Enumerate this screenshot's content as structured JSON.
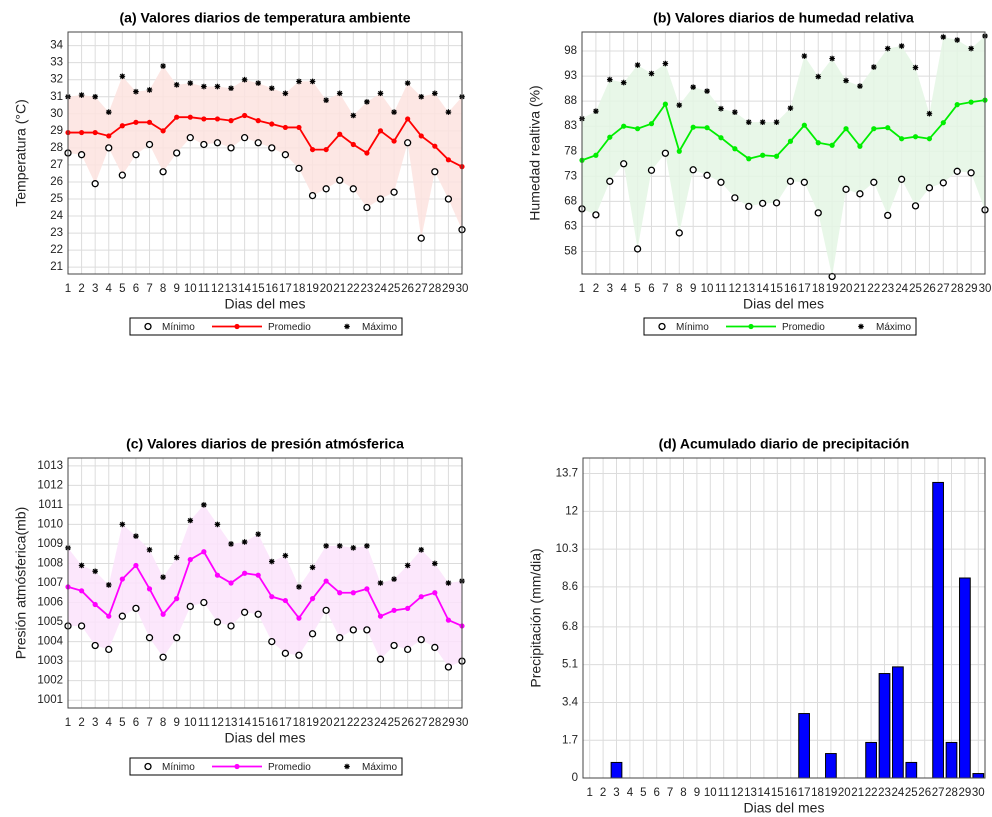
{
  "chart_data": [
    {
      "type": "line",
      "title": "(a) Valores diarios de temperatura ambiente",
      "xlabel": "Dias del mes",
      "ylabel": "Temperatura (°C)",
      "x": [
        1,
        2,
        3,
        4,
        5,
        6,
        7,
        8,
        9,
        10,
        11,
        12,
        13,
        14,
        15,
        16,
        17,
        18,
        19,
        20,
        21,
        22,
        23,
        24,
        25,
        26,
        27,
        28,
        29,
        30
      ],
      "xlim": [
        1,
        30
      ],
      "xticks": [
        1,
        2,
        3,
        4,
        5,
        6,
        7,
        8,
        9,
        10,
        11,
        12,
        13,
        14,
        15,
        16,
        17,
        18,
        19,
        20,
        21,
        22,
        23,
        24,
        25,
        26,
        27,
        28,
        29,
        30
      ],
      "ylim": [
        20.6,
        34.8
      ],
      "yticks": [
        21,
        22,
        23,
        24,
        25,
        26,
        27,
        28,
        29,
        30,
        31,
        32,
        33,
        34
      ],
      "grid": true,
      "legend": "bottom",
      "band_color": "#fde3df",
      "series": [
        {
          "name": "Mínimo",
          "color": "#000000",
          "marker": "circle",
          "values": [
            27.7,
            27.6,
            25.9,
            28.0,
            26.4,
            27.6,
            28.2,
            26.6,
            27.7,
            28.6,
            28.2,
            28.3,
            28.0,
            28.6,
            28.3,
            28.0,
            27.6,
            26.8,
            25.2,
            25.6,
            26.1,
            25.6,
            24.5,
            25.0,
            25.4,
            28.3,
            22.7,
            26.6,
            25.0,
            23.2
          ]
        },
        {
          "name": "Promedio",
          "color": "#ff0000",
          "marker": "dot",
          "values": [
            28.9,
            28.9,
            28.9,
            28.7,
            29.3,
            29.5,
            29.5,
            29.0,
            29.8,
            29.8,
            29.7,
            29.7,
            29.6,
            29.9,
            29.6,
            29.4,
            29.2,
            29.2,
            27.9,
            27.9,
            28.8,
            28.2,
            27.7,
            29.0,
            28.4,
            29.7,
            28.7,
            28.1,
            27.3,
            26.9
          ]
        },
        {
          "name": "Máximo",
          "color": "#000000",
          "marker": "asterisk",
          "values": [
            31.0,
            31.1,
            31.0,
            30.1,
            32.2,
            31.3,
            31.4,
            32.8,
            31.7,
            31.8,
            31.6,
            31.6,
            31.5,
            32.0,
            31.8,
            31.5,
            31.2,
            31.9,
            31.9,
            30.8,
            31.2,
            29.9,
            30.7,
            31.2,
            30.1,
            31.8,
            31.0,
            31.2,
            30.1,
            31.0
          ]
        }
      ]
    },
    {
      "type": "line",
      "title": "(b) Valores diarios de humedad relativa",
      "xlabel": "Dias del mes",
      "ylabel": "Humedad realtiva (%)",
      "x": [
        1,
        2,
        3,
        4,
        5,
        6,
        7,
        8,
        9,
        10,
        11,
        12,
        13,
        14,
        15,
        16,
        17,
        18,
        19,
        20,
        21,
        22,
        23,
        24,
        25,
        26,
        27,
        28,
        29,
        30
      ],
      "xlim": [
        1,
        30
      ],
      "xticks": [
        1,
        2,
        3,
        4,
        5,
        6,
        7,
        8,
        9,
        10,
        11,
        12,
        13,
        14,
        15,
        16,
        17,
        18,
        19,
        20,
        21,
        22,
        23,
        24,
        25,
        26,
        27,
        28,
        29,
        30
      ],
      "ylim": [
        53.5,
        101.8
      ],
      "yticks": [
        58,
        63,
        68,
        73,
        78,
        83,
        88,
        93,
        98
      ],
      "grid": true,
      "legend": "bottom",
      "band_color": "#e4f6e4",
      "series": [
        {
          "name": "Mínimo",
          "color": "#000000",
          "marker": "circle",
          "values": [
            66.5,
            65.3,
            72.0,
            75.5,
            58.5,
            74.2,
            77.6,
            61.7,
            74.3,
            73.2,
            71.8,
            68.7,
            67.0,
            67.6,
            67.7,
            72.0,
            71.8,
            65.7,
            53.0,
            70.4,
            69.5,
            71.8,
            65.2,
            72.4,
            67.1,
            70.7,
            71.7,
            74.0,
            73.7,
            66.3
          ]
        },
        {
          "name": "Promedio",
          "color": "#00ee00",
          "marker": "dot",
          "values": [
            76.2,
            77.2,
            80.8,
            83.0,
            82.5,
            83.5,
            87.4,
            78.0,
            82.8,
            82.7,
            80.7,
            78.5,
            76.5,
            77.2,
            77.0,
            80.0,
            83.2,
            79.7,
            79.2,
            82.5,
            79.0,
            82.5,
            82.7,
            80.5,
            80.9,
            80.5,
            83.7,
            87.3,
            87.8,
            88.2
          ]
        },
        {
          "name": "Máximo",
          "color": "#000000",
          "marker": "asterisk",
          "values": [
            84.5,
            86.0,
            92.3,
            91.7,
            95.2,
            93.5,
            95.5,
            87.2,
            90.8,
            90.0,
            86.5,
            85.8,
            83.8,
            83.8,
            83.8,
            86.6,
            97.0,
            92.9,
            96.5,
            92.1,
            91.0,
            94.8,
            98.5,
            99.0,
            94.7,
            85.5,
            100.8,
            100.2,
            98.5,
            101.0
          ]
        }
      ]
    },
    {
      "type": "line",
      "title": "(c) Valores diarios de presión atmósferica",
      "xlabel": "Dias del mes",
      "ylabel": "Presión atmósferica(mb)",
      "x": [
        1,
        2,
        3,
        4,
        5,
        6,
        7,
        8,
        9,
        10,
        11,
        12,
        13,
        14,
        15,
        16,
        17,
        18,
        19,
        20,
        21,
        22,
        23,
        24,
        25,
        26,
        27,
        28,
        29,
        30
      ],
      "xlim": [
        1,
        30
      ],
      "xticks": [
        1,
        2,
        3,
        4,
        5,
        6,
        7,
        8,
        9,
        10,
        11,
        12,
        13,
        14,
        15,
        16,
        17,
        18,
        19,
        20,
        21,
        22,
        23,
        24,
        25,
        26,
        27,
        28,
        29,
        30
      ],
      "ylim": [
        1000.6,
        1013.4
      ],
      "yticks": [
        1001,
        1002,
        1003,
        1004,
        1005,
        1006,
        1007,
        1008,
        1009,
        1010,
        1011,
        1012,
        1013
      ],
      "grid": true,
      "legend": "bottom",
      "band_color": "#fbe3fb",
      "series": [
        {
          "name": "Mínimo",
          "color": "#000000",
          "marker": "circle",
          "values": [
            1004.8,
            1004.8,
            1003.8,
            1003.6,
            1005.3,
            1005.7,
            1004.2,
            1003.2,
            1004.2,
            1005.8,
            1006.0,
            1005.0,
            1004.8,
            1005.5,
            1005.4,
            1004.0,
            1003.4,
            1003.3,
            1004.4,
            1005.6,
            1004.2,
            1004.6,
            1004.6,
            1003.1,
            1003.8,
            1003.6,
            1004.1,
            1003.7,
            1002.7,
            1003.0
          ]
        },
        {
          "name": "Promedio",
          "color": "#ff00ff",
          "marker": "dot",
          "values": [
            1006.8,
            1006.6,
            1005.9,
            1005.3,
            1007.2,
            1007.9,
            1006.7,
            1005.4,
            1006.2,
            1008.2,
            1008.6,
            1007.4,
            1007.0,
            1007.5,
            1007.4,
            1006.3,
            1006.1,
            1005.2,
            1006.2,
            1007.1,
            1006.5,
            1006.5,
            1006.7,
            1005.3,
            1005.6,
            1005.7,
            1006.3,
            1006.5,
            1005.1,
            1004.8
          ]
        },
        {
          "name": "Máximo",
          "color": "#000000",
          "marker": "asterisk",
          "values": [
            1008.8,
            1007.9,
            1007.6,
            1006.9,
            1010.0,
            1009.4,
            1008.7,
            1007.3,
            1008.3,
            1010.2,
            1011.0,
            1010.0,
            1009.0,
            1009.1,
            1009.5,
            1008.1,
            1008.4,
            1006.8,
            1007.8,
            1008.9,
            1008.9,
            1008.8,
            1008.9,
            1007.0,
            1007.2,
            1007.9,
            1008.7,
            1008.0,
            1007.0,
            1007.1
          ]
        }
      ]
    },
    {
      "type": "bar",
      "title": "(d) Acumulado diario de precipitación",
      "xlabel": "Dias del mes",
      "ylabel": "Precipitación (mm/dia)",
      "categories": [
        "1",
        "2",
        "3",
        "4",
        "5",
        "6",
        "7",
        "8",
        "9",
        "10",
        "11",
        "12",
        "13",
        "14",
        "15",
        "16",
        "17",
        "18",
        "19",
        "20",
        "21",
        "22",
        "23",
        "24",
        "25",
        "26",
        "27",
        "28",
        "29",
        "30"
      ],
      "values": [
        0,
        0,
        0.7,
        0,
        0,
        0,
        0,
        0,
        0,
        0,
        0,
        0,
        0,
        0,
        0,
        0,
        2.9,
        0,
        1.1,
        0,
        0,
        1.6,
        4.7,
        5.0,
        0.7,
        0,
        13.3,
        1.6,
        9.0,
        0.2
      ],
      "color": "#0000ff",
      "ylim": [
        0,
        14.4
      ],
      "yticks": [
        0,
        1.7,
        3.4,
        5.1,
        6.8,
        8.6,
        10.3,
        12,
        13.7
      ],
      "grid": true
    }
  ]
}
